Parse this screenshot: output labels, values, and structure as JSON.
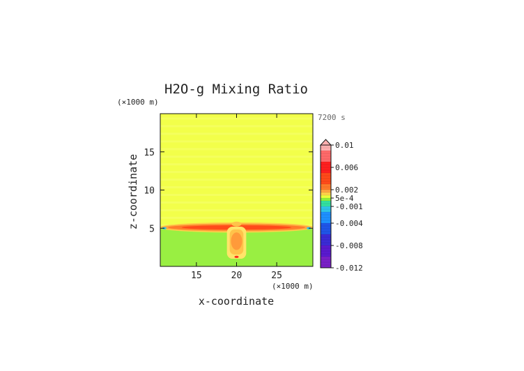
{
  "chart_data": {
    "type": "heatmap",
    "title": "H2O-g Mixing Ratio",
    "time_label": "7200 s",
    "xlabel": "x-coordinate",
    "ylabel": "z-coordinate",
    "x_scale_note": "(×1000 m)",
    "y_scale_note": "(×1000 m)",
    "xlim": [
      10.5,
      29.5
    ],
    "ylim": [
      0,
      20
    ],
    "x_ticks": [
      15,
      20,
      25
    ],
    "y_ticks": [
      5,
      10,
      15
    ],
    "x_tick_labels": [
      "15",
      "20",
      "25"
    ],
    "y_tick_labels": [
      "5",
      "10",
      "15"
    ],
    "grid": false,
    "legend": "colorbar-right",
    "colorbar": {
      "labels": [
        "0.01",
        "0.006",
        "0.002",
        "5e-4",
        "-0.001",
        "-0.004",
        "-0.008",
        "-0.012"
      ],
      "label_values": [
        0.01,
        0.006,
        0.002,
        0.0005,
        -0.001,
        -0.004,
        -0.008,
        -0.012
      ],
      "range": [
        -0.012,
        0.01
      ],
      "extend": "max",
      "bands": [
        {
          "from": -0.012,
          "to": -0.01,
          "color": "#7a1fc8"
        },
        {
          "from": -0.01,
          "to": -0.008,
          "color": "#5a1acf"
        },
        {
          "from": -0.008,
          "to": -0.006,
          "color": "#3b2bd6"
        },
        {
          "from": -0.006,
          "to": -0.004,
          "color": "#1f55e8"
        },
        {
          "from": -0.004,
          "to": -0.002,
          "color": "#1e90ff"
        },
        {
          "from": -0.002,
          "to": -0.001,
          "color": "#2ec4e8"
        },
        {
          "from": -0.001,
          "to": 0.0,
          "color": "#33e0a0"
        },
        {
          "from": 0.0,
          "to": 0.0005,
          "color": "#8cf03c"
        },
        {
          "from": 0.0005,
          "to": 0.001,
          "color": "#eaff3a"
        },
        {
          "from": 0.001,
          "to": 0.0015,
          "color": "#ffd24a"
        },
        {
          "from": 0.0015,
          "to": 0.002,
          "color": "#ffa640"
        },
        {
          "from": 0.002,
          "to": 0.003,
          "color": "#ff7a2a"
        },
        {
          "from": 0.003,
          "to": 0.005,
          "color": "#ff4a1a"
        },
        {
          "from": 0.005,
          "to": 0.007,
          "color": "#ff1f1f"
        },
        {
          "from": 0.007,
          "to": 0.009,
          "color": "#ff6a6a"
        },
        {
          "from": 0.009,
          "to": 0.01,
          "color": "#ffb0b0"
        }
      ]
    },
    "regions": [
      {
        "name": "upper layer",
        "x_range": [
          10.5,
          29.5
        ],
        "z_range": [
          5,
          20
        ],
        "value_range": [
          0.0005,
          0.001
        ],
        "color": "#f2ff4a"
      },
      {
        "name": "lower layer",
        "x_range": [
          10.5,
          29.5
        ],
        "z_range": [
          0,
          5
        ],
        "value_range": [
          0.0,
          0.0005
        ],
        "color": "#99ef42"
      },
      {
        "name": "interface anomaly",
        "x_range": [
          10.5,
          29.5
        ],
        "z_range": [
          4.6,
          5.6
        ],
        "value_range": [
          0.002,
          0.007
        ],
        "color": "#ff5522"
      },
      {
        "name": "central column",
        "x_range": [
          18.8,
          21.2
        ],
        "z_range": [
          1.0,
          5.2
        ],
        "value_range": [
          0.001,
          0.003
        ],
        "color": "#ffc24a"
      }
    ]
  }
}
